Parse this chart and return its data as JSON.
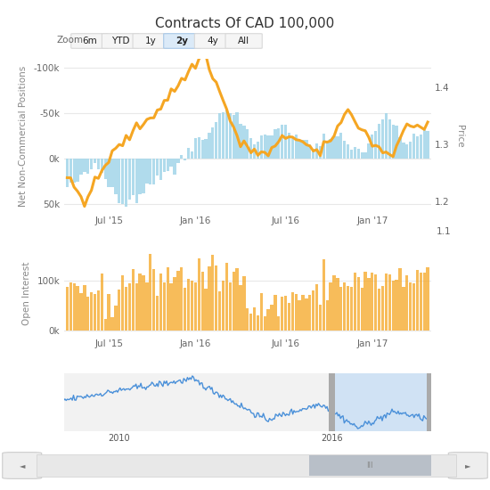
{
  "title": "Contracts Of CAD 100,000",
  "zoom_buttons": [
    "6m",
    "YTD",
    "1y",
    "2y",
    "4y",
    "All"
  ],
  "active_button": "2y",
  "main_ylim": [
    60000,
    -110000
  ],
  "main_yticks": [
    -100000,
    -50000,
    0,
    50000
  ],
  "main_yticklabels": [
    "-100k",
    "-50k",
    "0k",
    "50k"
  ],
  "price_ylim": [
    1.18,
    1.45
  ],
  "price_yticks": [
    1.2,
    1.3,
    1.4
  ],
  "price_yticklabels": [
    "1.2",
    "1.3",
    "1.4"
  ],
  "oi_ylim": [
    -10000,
    160000
  ],
  "oi_yticks": [
    0,
    100000
  ],
  "oi_yticklabels": [
    "0k",
    "100k"
  ],
  "bar_color": "#a8d8ea",
  "line_color": "#f5a623",
  "oi_bar_color": "#f5a623",
  "nav_line_color": "#4a90d9",
  "nav_fill_color": "#c8dff5",
  "background_color": "#ffffff",
  "grid_color": "#e8e8e8",
  "ylabel_main": "Net Non-Commercial Positions",
  "ylabel_oi": "Open Interest",
  "ylabel_price": "Price",
  "date_ticks_main": [
    "Jul '15",
    "Jan '16",
    "Jul '16",
    "Jan '17"
  ],
  "date_ticks_nav": [
    "2010",
    "2016"
  ],
  "n_main": 105,
  "n_nav": 300
}
